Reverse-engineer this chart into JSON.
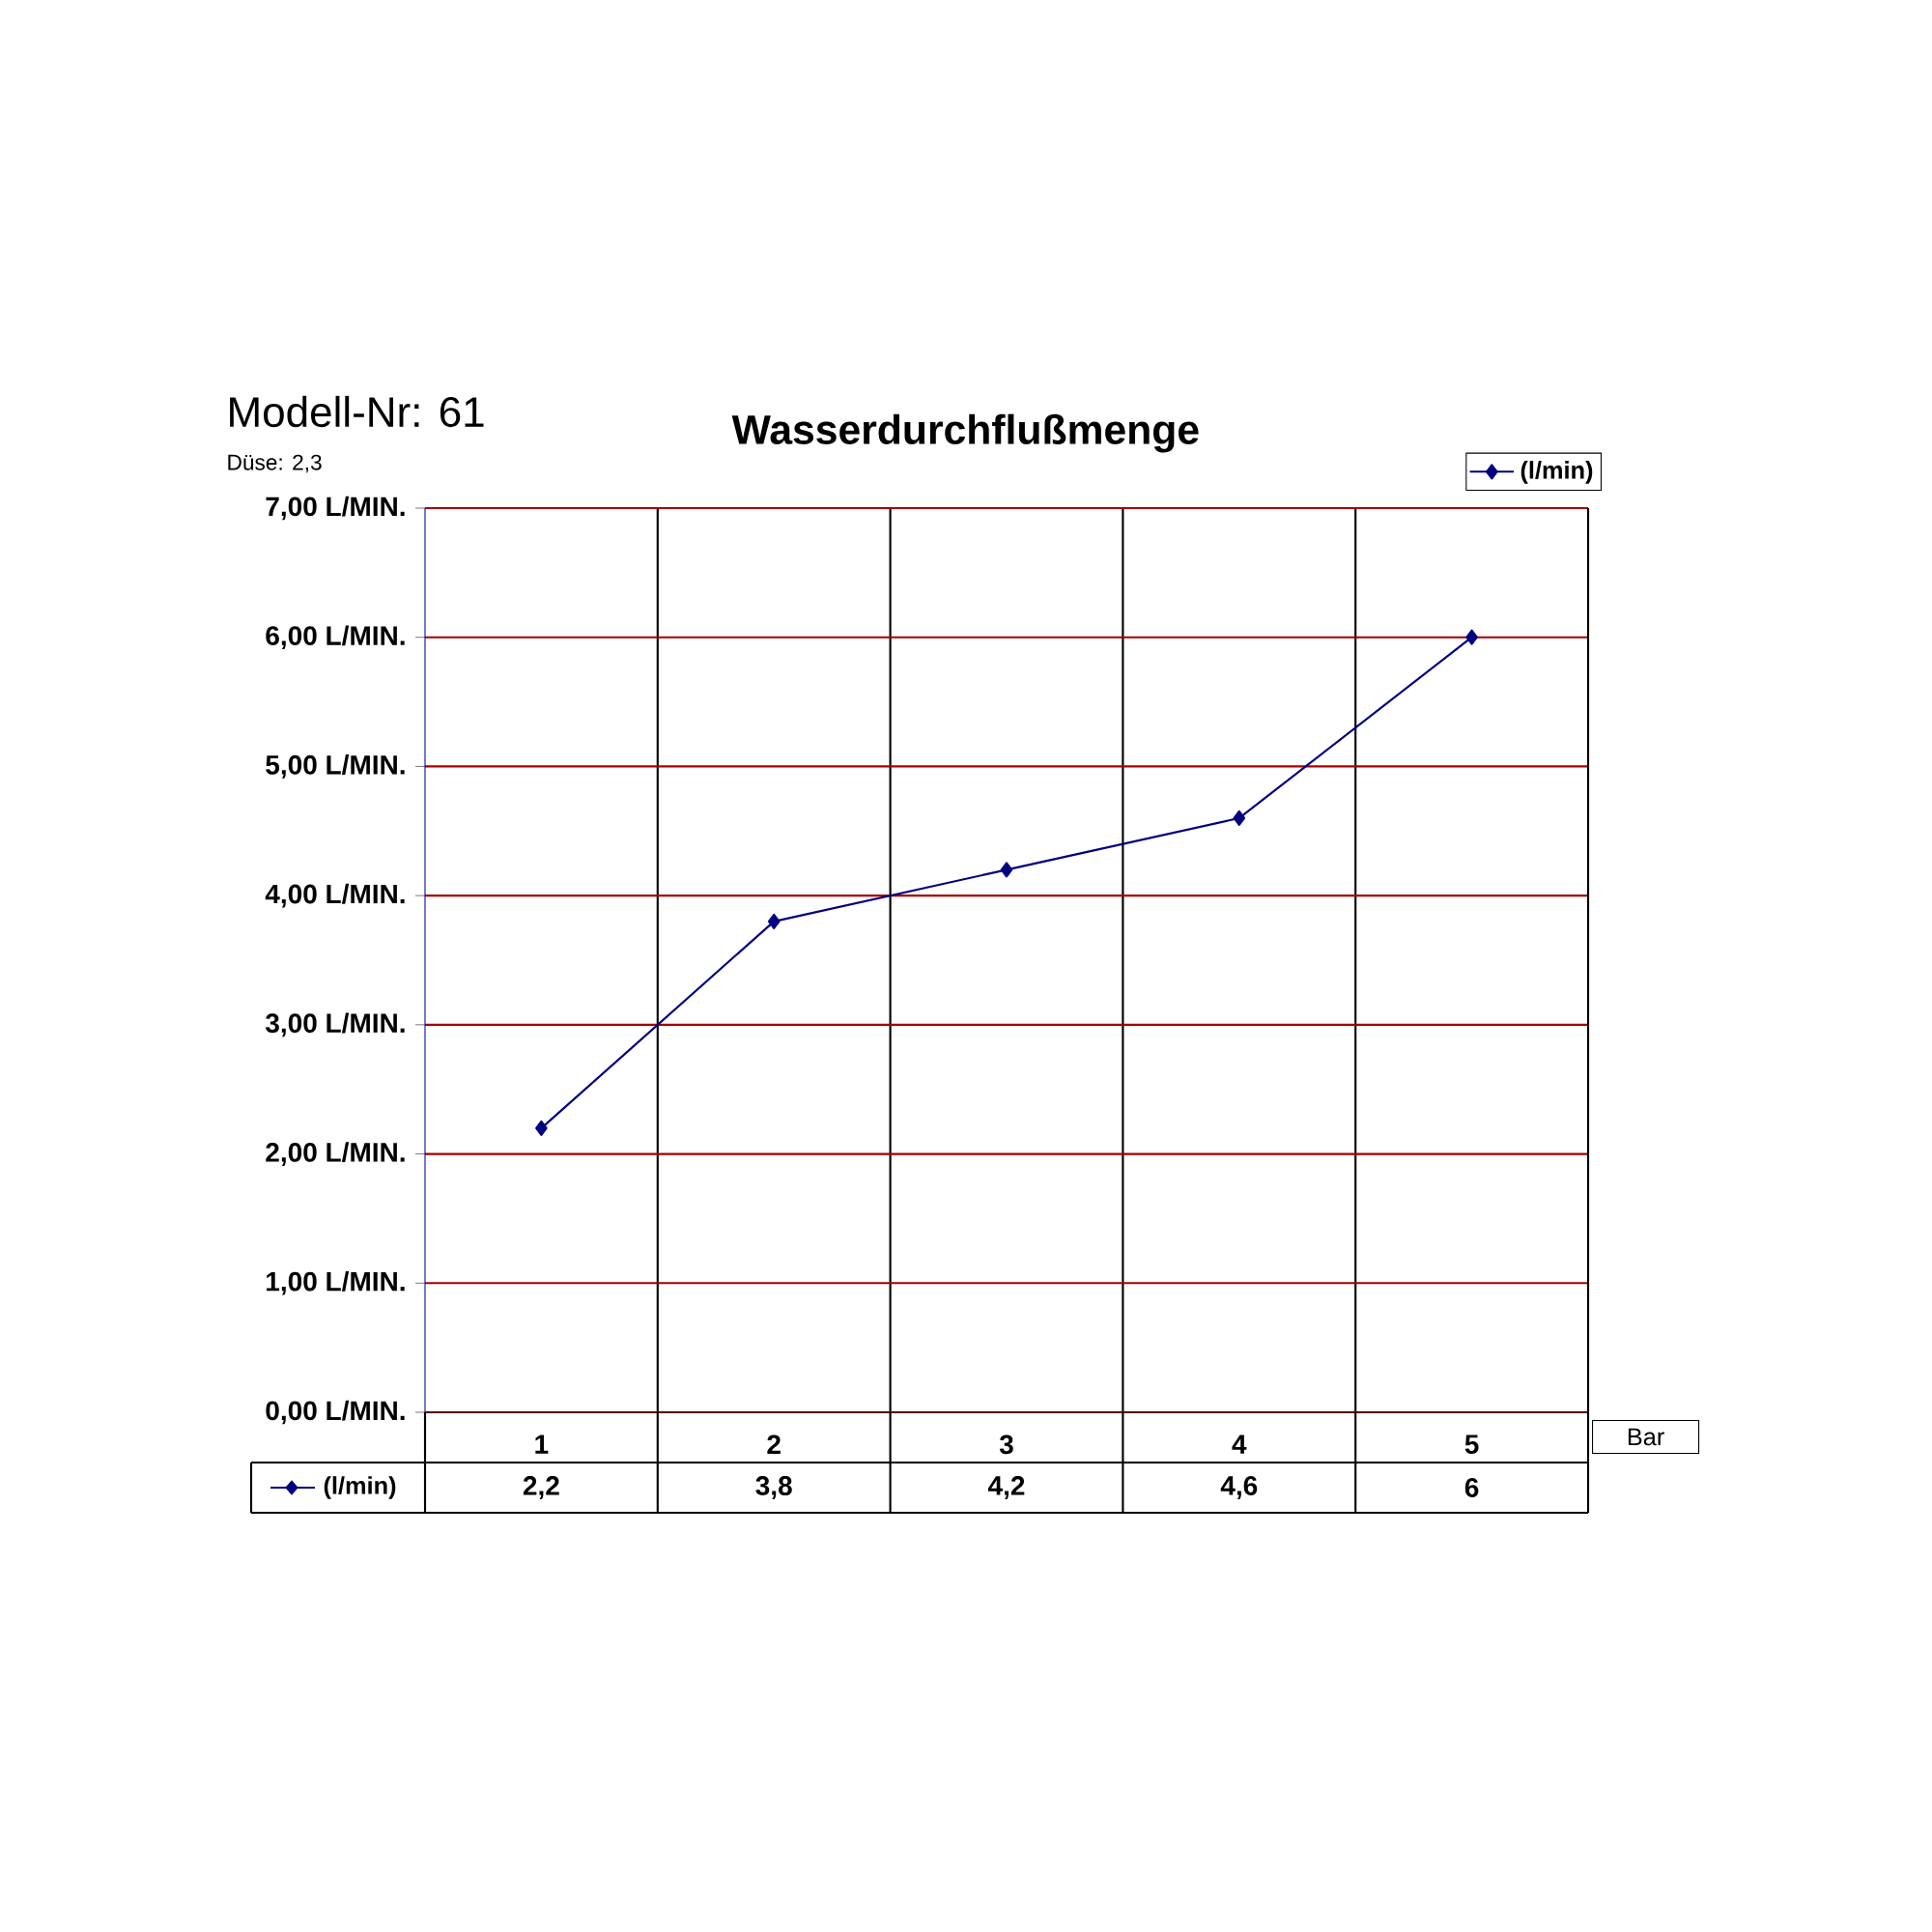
{
  "chart_data": {
    "type": "line",
    "title": "Wasserdurchflußmenge",
    "annotations": [
      "Modell-Nr:  61",
      "Düse:   2,3"
    ],
    "xlabel": "Bar",
    "categories": [
      "1",
      "2",
      "3",
      "4",
      "5"
    ],
    "series": [
      {
        "name": "(l/min)",
        "color": "#000080",
        "values": [
          2.2,
          3.8,
          4.2,
          4.6,
          6
        ],
        "value_labels": [
          "2,2",
          "3,8",
          "4,2",
          "4,6",
          "6"
        ]
      }
    ],
    "ylim": [
      0,
      7
    ],
    "yticks": [
      {
        "value": 0,
        "label": "0,00 L/MIN."
      },
      {
        "value": 1,
        "label": "1,00 L/MIN."
      },
      {
        "value": 2,
        "label": "2,00 L/MIN."
      },
      {
        "value": 3,
        "label": "3,00 L/MIN."
      },
      {
        "value": 4,
        "label": "4,00 L/MIN."
      },
      {
        "value": 5,
        "label": "5,00 L/MIN."
      },
      {
        "value": 6,
        "label": "6,00 L/MIN."
      },
      {
        "value": 7,
        "label": "7,00 L/MIN."
      }
    ],
    "grid": true,
    "legend": "top right",
    "marker": "diamond",
    "line_style": "solid"
  }
}
